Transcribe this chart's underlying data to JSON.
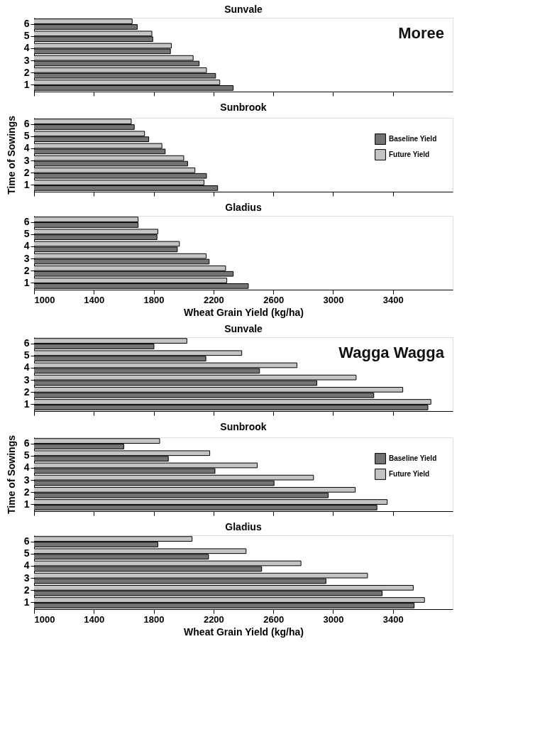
{
  "chart_data": [
    {
      "type": "bar",
      "orientation": "horizontal",
      "title": "Sunvale",
      "annotations": [
        "Moree"
      ],
      "categories": [
        "6",
        "5",
        "4",
        "3",
        "2",
        "1"
      ],
      "series": [
        {
          "color": "#737373",
          "values": [
            1690,
            1794,
            1912,
            2104,
            2214,
            2332
          ]
        },
        {
          "color": "#c4c4c4",
          "values": [
            1656,
            1788,
            1918,
            2064,
            2153,
            2242
          ]
        }
      ],
      "xlim": [
        1000,
        3800
      ],
      "xticks": [
        1000,
        1400,
        1800,
        2200,
        2600,
        3000,
        3400
      ],
      "tick_labels": "y",
      "legend": false
    },
    {
      "type": "bar",
      "orientation": "horizontal",
      "title": "Sunbrook",
      "ylabel": "Time of Sowings",
      "categories": [
        "6",
        "5",
        "4",
        "3",
        "2",
        "1"
      ],
      "series": [
        {
          "name": "Baseline Yield",
          "color": "#737373",
          "values": [
            1670,
            1767,
            1877,
            2027,
            2153,
            2228
          ]
        },
        {
          "name": "Future Yield",
          "color": "#c4c4c4",
          "values": [
            1650,
            1739,
            1855,
            2001,
            2076,
            2137
          ]
        }
      ],
      "xlim": [
        1000,
        3800
      ],
      "xticks": [
        1000,
        1400,
        1800,
        2200,
        2600,
        3000,
        3400
      ],
      "tick_labels": "y",
      "legend": "top right"
    },
    {
      "type": "bar",
      "orientation": "horizontal",
      "title": "Gladius",
      "xlabel": "Wheat Grain Yield (kg/ha)",
      "categories": [
        "6",
        "5",
        "4",
        "3",
        "2",
        "1"
      ],
      "series": [
        {
          "color": "#737373",
          "values": [
            1696,
            1822,
            1958,
            2171,
            2332,
            2433
          ]
        },
        {
          "color": "#c4c4c4",
          "values": [
            1696,
            1828,
            1972,
            2151,
            2281,
            2289
          ]
        }
      ],
      "xlim": [
        1000,
        3800
      ],
      "xticks": [
        1000,
        1400,
        1800,
        2200,
        2600,
        3000,
        3400
      ],
      "legend": false
    },
    {
      "type": "bar",
      "orientation": "horizontal",
      "title": "Sunvale",
      "annotations": [
        "Wagga Wagga"
      ],
      "categories": [
        "6",
        "5",
        "4",
        "3",
        "2",
        "1"
      ],
      "series": [
        {
          "color": "#737373",
          "values": [
            1802,
            2149,
            2508,
            2891,
            3272,
            3634
          ]
        },
        {
          "color": "#c4c4c4",
          "values": [
            2022,
            2389,
            2758,
            3154,
            3466,
            3654
          ]
        }
      ],
      "xlim": [
        1000,
        3800
      ],
      "xticks": [
        1000,
        1400,
        1800,
        2200,
        2600,
        3000,
        3400
      ],
      "tick_labels": "y",
      "legend": false
    },
    {
      "type": "bar",
      "orientation": "horizontal",
      "title": "Sunbrook",
      "ylabel": "Time of Sowings",
      "categories": [
        "6",
        "5",
        "4",
        "3",
        "2",
        "1"
      ],
      "series": [
        {
          "name": "Baseline Yield",
          "color": "#737373",
          "values": [
            1600,
            1898,
            2210,
            2605,
            2967,
            3293
          ]
        },
        {
          "name": "Future Yield",
          "color": "#c4c4c4",
          "values": [
            1840,
            2175,
            2493,
            2869,
            3148,
            3362
          ]
        }
      ],
      "xlim": [
        1000,
        3800
      ],
      "xticks": [
        1000,
        1400,
        1800,
        2200,
        2600,
        3000,
        3400
      ],
      "tick_labels": "y",
      "legend": "top right"
    },
    {
      "type": "bar",
      "orientation": "horizontal",
      "title": "Gladius",
      "xlabel": "Wheat Grain Yield (kg/ha)",
      "categories": [
        "6",
        "5",
        "4",
        "3",
        "2",
        "1"
      ],
      "series": [
        {
          "color": "#737373",
          "values": [
            1828,
            2167,
            2522,
            2952,
            3328,
            3542
          ]
        },
        {
          "color": "#c4c4c4",
          "values": [
            2057,
            2418,
            2785,
            3230,
            3536,
            3611
          ]
        }
      ],
      "xlim": [
        1000,
        3800
      ],
      "xticks": [
        1000,
        1400,
        1800,
        2200,
        2600,
        3000,
        3400
      ],
      "legend": false
    }
  ]
}
